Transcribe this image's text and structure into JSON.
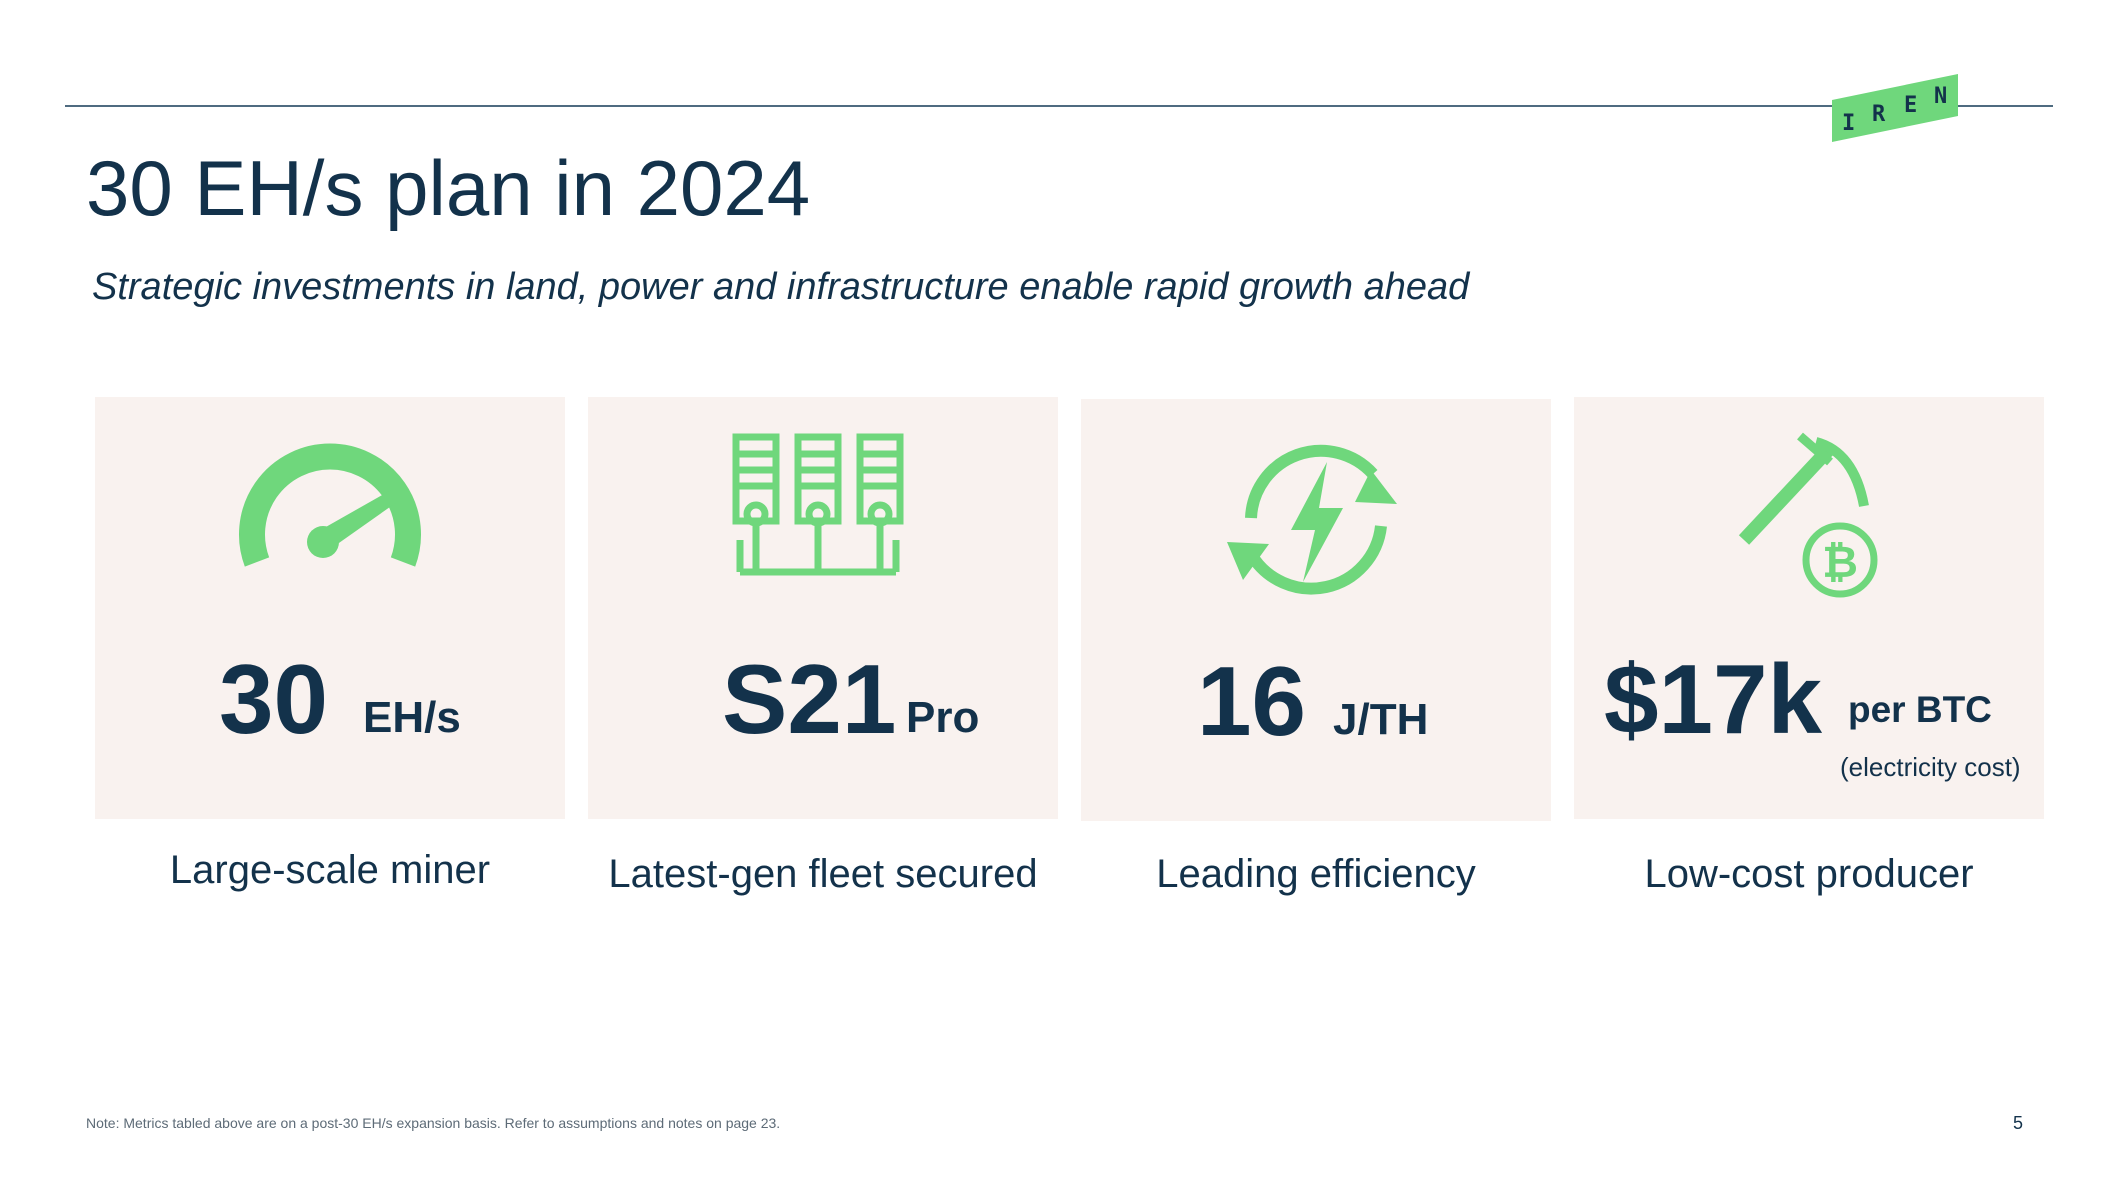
{
  "header": {
    "logo_letters": [
      "I",
      "R",
      "E",
      "N"
    ],
    "title": "30 EH/s plan in 2024",
    "subtitle": "Strategic investments in land, power and infrastructure enable rapid growth ahead"
  },
  "cards": [
    {
      "icon": "speedometer-icon",
      "value": "30",
      "unit": "EH/s",
      "note": "",
      "caption": "Large-scale miner"
    },
    {
      "icon": "server-racks-icon",
      "value": "S21",
      "unit": "Pro",
      "note": "",
      "caption": "Latest-gen fleet secured"
    },
    {
      "icon": "energy-cycle-icon",
      "value": "16",
      "unit": "J/TH",
      "note": "",
      "caption": "Leading efficiency"
    },
    {
      "icon": "bitcoin-pickaxe-icon",
      "value": "$17k",
      "unit": "per BTC",
      "note": "(electricity  cost)",
      "caption": "Low-cost producer"
    }
  ],
  "footer": {
    "note": "Note: Metrics tabled above are on a post-30 EH/s expansion basis. Refer to assumptions and notes on page 23.",
    "page_number": "5"
  },
  "colors": {
    "navy": "#13324b",
    "accent_green": "#6fd77c",
    "card_bg": "#f9f2ef",
    "rule": "#4f6b80"
  }
}
